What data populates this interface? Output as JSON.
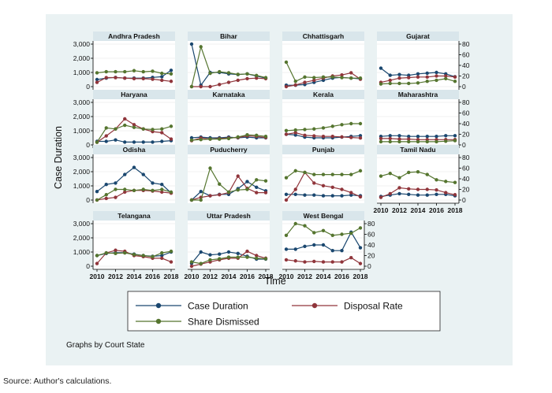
{
  "chart_data": {
    "type": "line",
    "title": "",
    "xlabel": "Time",
    "ylabel": "Case Duration",
    "x": [
      2010,
      2011,
      2012,
      2013,
      2014,
      2015,
      2016,
      2017,
      2018
    ],
    "x_ticks": [
      2010,
      2012,
      2014,
      2016,
      2018
    ],
    "left_axis": {
      "range": [
        0,
        3000
      ],
      "ticks": [
        "0",
        "1,000",
        "2,000",
        "3,000"
      ]
    },
    "right_axis": {
      "range": [
        0,
        80
      ],
      "ticks": [
        "0",
        "20",
        "40",
        "60",
        "80"
      ]
    },
    "series_styles": [
      {
        "name": "Case Duration",
        "color": "#1a476f",
        "axis": "left"
      },
      {
        "name": "Disposal Rate",
        "color": "#90353b",
        "axis": "right"
      },
      {
        "name": "Share Dismissed",
        "color": "#55752f",
        "axis": "right"
      }
    ],
    "legend": {
      "placement": "bottom",
      "entries": [
        "Case Duration",
        "Disposal Rate",
        "Share Dismissed"
      ]
    },
    "note": "Graphs by Court State",
    "panels": [
      {
        "state": "Andhra Pradesh",
        "case_duration": [
          500,
          600,
          650,
          600,
          600,
          600,
          650,
          700,
          1150
        ],
        "disposal_rate": [
          8,
          17,
          17,
          16,
          15,
          15,
          14,
          12,
          10
        ],
        "share_dismissed": [
          26,
          28,
          28,
          28,
          30,
          28,
          29,
          25,
          24
        ]
      },
      {
        "state": "Bihar",
        "case_duration": [
          3000,
          100,
          1000,
          1000,
          900,
          850,
          900,
          750,
          600
        ],
        "disposal_rate": [
          0,
          0,
          0,
          4,
          8,
          12,
          15,
          16,
          15
        ],
        "share_dismissed": [
          0,
          75,
          25,
          28,
          26,
          23,
          24,
          21,
          17
        ]
      },
      {
        "state": "Chhattisgarh",
        "case_duration": [
          100,
          100,
          150,
          300,
          450,
          600,
          650,
          600,
          550
        ],
        "disposal_rate": [
          0,
          3,
          8,
          12,
          16,
          20,
          22,
          26,
          14
        ],
        "share_dismissed": [
          46,
          10,
          18,
          17,
          18,
          18,
          17,
          16,
          16
        ]
      },
      {
        "state": "Gujarat",
        "case_duration": [
          1300,
          800,
          850,
          800,
          900,
          950,
          1000,
          900,
          700
        ],
        "disposal_rate": [
          8,
          12,
          16,
          17,
          18,
          18,
          20,
          20,
          18
        ],
        "share_dismissed": [
          5,
          6,
          6,
          6,
          7,
          10,
          12,
          15,
          10
        ]
      },
      {
        "state": "Haryana",
        "case_duration": [
          250,
          250,
          350,
          200,
          200,
          200,
          200,
          250,
          300
        ],
        "disposal_rate": [
          5,
          17,
          30,
          49,
          38,
          30,
          25,
          23,
          11
        ],
        "share_dismissed": [
          5,
          32,
          30,
          37,
          33,
          30,
          29,
          30,
          35
        ]
      },
      {
        "state": "Karnataka",
        "case_duration": [
          500,
          550,
          500,
          500,
          550,
          500,
          550,
          500,
          500
        ],
        "disposal_rate": [
          8,
          13,
          11,
          12,
          13,
          14,
          17,
          16,
          14
        ],
        "share_dismissed": [
          9,
          10,
          11,
          11,
          12,
          15,
          19,
          18,
          16
        ]
      },
      {
        "state": "Kerala",
        "case_duration": [
          750,
          700,
          550,
          500,
          500,
          500,
          550,
          600,
          650
        ],
        "disposal_rate": [
          20,
          23,
          18,
          17,
          16,
          16,
          15,
          14,
          13
        ],
        "share_dismissed": [
          27,
          28,
          29,
          30,
          32,
          35,
          38,
          40,
          40
        ]
      },
      {
        "state": "Maharashtra",
        "case_duration": [
          600,
          650,
          650,
          600,
          600,
          600,
          600,
          650,
          650
        ],
        "disposal_rate": [
          12,
          12,
          11,
          11,
          10,
          10,
          10,
          10,
          10
        ],
        "share_dismissed": [
          6,
          6,
          6,
          6,
          6,
          6,
          6,
          7,
          8
        ]
      },
      {
        "state": "Odisha",
        "case_duration": [
          600,
          1100,
          1200,
          1800,
          2300,
          1800,
          1200,
          1100,
          500
        ],
        "disposal_rate": [
          0,
          3,
          5,
          15,
          18,
          18,
          17,
          15,
          13
        ],
        "share_dismissed": [
          0,
          10,
          20,
          20,
          18,
          20,
          18,
          20,
          15
        ]
      },
      {
        "state": "Puducherry",
        "case_duration": [
          0,
          600,
          300,
          400,
          400,
          800,
          1300,
          900,
          650
        ],
        "disposal_rate": [
          0,
          5,
          8,
          10,
          14,
          45,
          22,
          14,
          14
        ],
        "share_dismissed": [
          0,
          0,
          60,
          30,
          15,
          19,
          20,
          38,
          36
        ]
      },
      {
        "state": "Punjab",
        "case_duration": [
          400,
          400,
          350,
          350,
          300,
          300,
          300,
          350,
          300
        ],
        "disposal_rate": [
          0,
          20,
          52,
          32,
          27,
          24,
          20,
          14,
          6
        ],
        "share_dismissed": [
          42,
          55,
          52,
          48,
          48,
          48,
          48,
          48,
          55
        ]
      },
      {
        "state": "Tamil Nadu",
        "case_duration": [
          250,
          350,
          450,
          400,
          350,
          350,
          400,
          400,
          300
        ],
        "disposal_rate": [
          5,
          12,
          23,
          21,
          20,
          20,
          19,
          14,
          10
        ],
        "share_dismissed": [
          45,
          50,
          42,
          52,
          53,
          48,
          38,
          35,
          33
        ]
      },
      {
        "state": "Telangana",
        "case_duration": [
          750,
          900,
          950,
          950,
          850,
          750,
          700,
          750,
          1000
        ],
        "disposal_rate": [
          5,
          25,
          30,
          28,
          20,
          18,
          15,
          15,
          8
        ],
        "share_dismissed": [
          20,
          25,
          24,
          25,
          22,
          20,
          18,
          25,
          28
        ]
      },
      {
        "state": "Uttar Pradesh",
        "case_duration": [
          200,
          1000,
          800,
          850,
          1000,
          900,
          700,
          500,
          500
        ],
        "disposal_rate": [
          0,
          4,
          8,
          12,
          15,
          15,
          28,
          20,
          15
        ],
        "share_dismissed": [
          8,
          5,
          12,
          14,
          17,
          17,
          17,
          15,
          14
        ]
      },
      {
        "state": "West Bengal",
        "case_duration": [
          1200,
          1200,
          1400,
          1500,
          1500,
          1100,
          1100,
          2400,
          1300
        ],
        "disposal_rate": [
          12,
          10,
          8,
          9,
          8,
          8,
          8,
          16,
          5
        ],
        "share_dismissed": [
          58,
          80,
          76,
          63,
          67,
          58,
          60,
          62,
          72
        ]
      }
    ]
  },
  "source": "Source: Author's calculations."
}
